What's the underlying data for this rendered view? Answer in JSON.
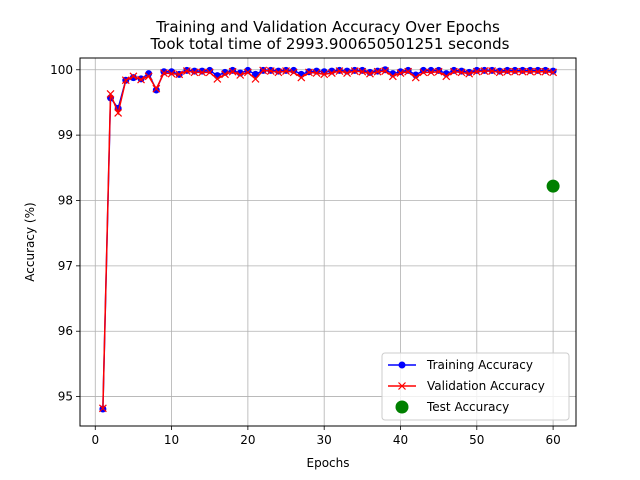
{
  "chart_data": {
    "type": "line",
    "title": "Training and Validation Accuracy Over Epochs",
    "subtitle": "Took total time of 2993.900650501251 seconds",
    "xlabel": "Epochs",
    "ylabel": "Accuracy (%)",
    "xlim": [
      -2,
      63
    ],
    "ylim": [
      94.55,
      100.18
    ],
    "xticks": [
      0,
      10,
      20,
      30,
      40,
      50,
      60
    ],
    "yticks": [
      95,
      96,
      97,
      98,
      99,
      100
    ],
    "grid": true,
    "legend_position": "lower-right",
    "x": [
      1,
      2,
      3,
      4,
      5,
      6,
      7,
      8,
      9,
      10,
      11,
      12,
      13,
      14,
      15,
      16,
      17,
      18,
      19,
      20,
      21,
      22,
      23,
      24,
      25,
      26,
      27,
      28,
      29,
      30,
      31,
      32,
      33,
      34,
      35,
      36,
      37,
      38,
      39,
      40,
      41,
      42,
      43,
      44,
      45,
      46,
      47,
      48,
      49,
      50,
      51,
      52,
      53,
      54,
      55,
      56,
      57,
      58,
      59,
      60
    ],
    "series": [
      {
        "name": "Training Accuracy",
        "color": "#0000ff",
        "marker": "circle",
        "values": [
          94.81,
          99.57,
          99.41,
          99.84,
          99.88,
          99.86,
          99.94,
          99.69,
          99.97,
          99.97,
          99.93,
          99.99,
          99.98,
          99.98,
          99.99,
          99.91,
          99.96,
          99.99,
          99.95,
          99.99,
          99.93,
          99.99,
          99.99,
          99.98,
          99.99,
          99.99,
          99.93,
          99.97,
          99.98,
          99.97,
          99.98,
          99.99,
          99.98,
          99.99,
          99.99,
          99.96,
          99.98,
          100.0,
          99.94,
          99.97,
          99.99,
          99.92,
          99.99,
          99.99,
          99.99,
          99.94,
          99.99,
          99.98,
          99.96,
          99.99,
          99.99,
          99.99,
          99.98,
          99.99,
          99.99,
          99.99,
          99.99,
          99.99,
          99.99,
          99.98
        ]
      },
      {
        "name": "Validation Accuracy",
        "color": "#ff0000",
        "marker": "x",
        "values": [
          94.82,
          99.63,
          99.34,
          99.84,
          99.9,
          99.85,
          99.9,
          99.71,
          99.95,
          99.94,
          99.93,
          99.98,
          99.96,
          99.96,
          99.96,
          99.86,
          99.93,
          99.97,
          99.92,
          99.96,
          99.86,
          99.99,
          99.98,
          99.96,
          99.98,
          99.96,
          99.88,
          99.96,
          99.95,
          99.93,
          99.95,
          99.98,
          99.95,
          99.98,
          99.97,
          99.94,
          99.97,
          99.98,
          99.9,
          99.95,
          99.97,
          99.88,
          99.96,
          99.96,
          99.97,
          99.9,
          99.97,
          99.96,
          99.94,
          99.97,
          99.98,
          99.98,
          99.96,
          99.97,
          99.97,
          99.97,
          99.97,
          99.97,
          99.97,
          99.96
        ]
      },
      {
        "name": "Test Accuracy",
        "color": "#008000",
        "marker": "big-circle",
        "points": [
          [
            60,
            98.22
          ]
        ]
      }
    ]
  }
}
